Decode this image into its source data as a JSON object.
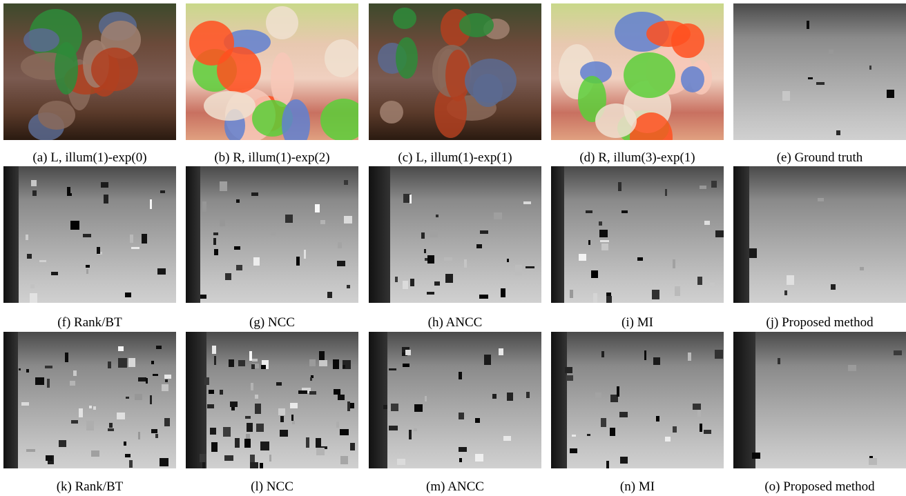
{
  "panels": [
    {
      "caption": "(a) L, illum(1)-exp(0)"
    },
    {
      "caption": "(b) R, illum(1)-exp(2)"
    },
    {
      "caption": "(c) L, illum(1)-exp(1)"
    },
    {
      "caption": "(d) R, illum(3)-exp(1)"
    },
    {
      "caption": "(e) Ground truth"
    },
    {
      "caption": "(f) Rank/BT"
    },
    {
      "caption": "(g) NCC"
    },
    {
      "caption": "(h) ANCC"
    },
    {
      "caption": "(i) MI"
    },
    {
      "caption": "(j) Proposed method"
    },
    {
      "caption": "(k) Rank/BT"
    },
    {
      "caption": "(l) NCC"
    },
    {
      "caption": "(m) ANCC"
    },
    {
      "caption": "(n) MI"
    },
    {
      "caption": "(o) Proposed method"
    }
  ]
}
